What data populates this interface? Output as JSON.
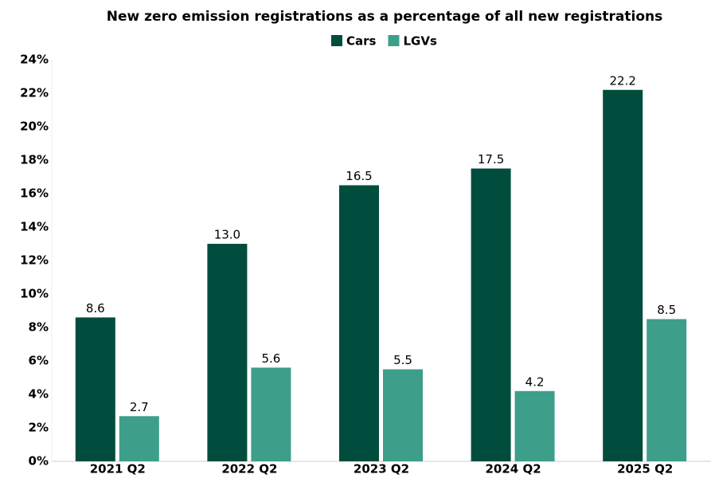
{
  "chart_data": {
    "type": "bar",
    "title": "New zero emission registrations as a percentage of all new registrations",
    "categories": [
      "2021 Q2",
      "2022 Q2",
      "2023 Q2",
      "2024 Q2",
      "2025 Q2"
    ],
    "series": [
      {
        "name": "Cars",
        "color": "#004d3d",
        "values": [
          8.6,
          13.0,
          16.5,
          17.5,
          22.2
        ],
        "value_labels": [
          "8.6",
          "13.0",
          "16.5",
          "17.5",
          "22.2"
        ]
      },
      {
        "name": "LGVs",
        "color": "#3d9e8a",
        "values": [
          2.7,
          5.6,
          5.5,
          4.2,
          8.5
        ],
        "value_labels": [
          "2.7",
          "5.6",
          "5.5",
          "4.2",
          "8.5"
        ]
      }
    ],
    "ylim": [
      0,
      24
    ],
    "yticks": [
      {
        "value": 0,
        "label": "0%"
      },
      {
        "value": 2,
        "label": "2%"
      },
      {
        "value": 4,
        "label": "4%"
      },
      {
        "value": 6,
        "label": "6%"
      },
      {
        "value": 8,
        "label": "8%"
      },
      {
        "value": 10,
        "label": "10%"
      },
      {
        "value": 12,
        "label": "12%"
      },
      {
        "value": 14,
        "label": "14%"
      },
      {
        "value": 16,
        "label": "16%"
      },
      {
        "value": 18,
        "label": "18%"
      },
      {
        "value": 20,
        "label": "20%"
      },
      {
        "value": 22,
        "label": "22%"
      },
      {
        "value": 24,
        "label": "24%"
      }
    ],
    "grid": false,
    "legend": "top"
  }
}
